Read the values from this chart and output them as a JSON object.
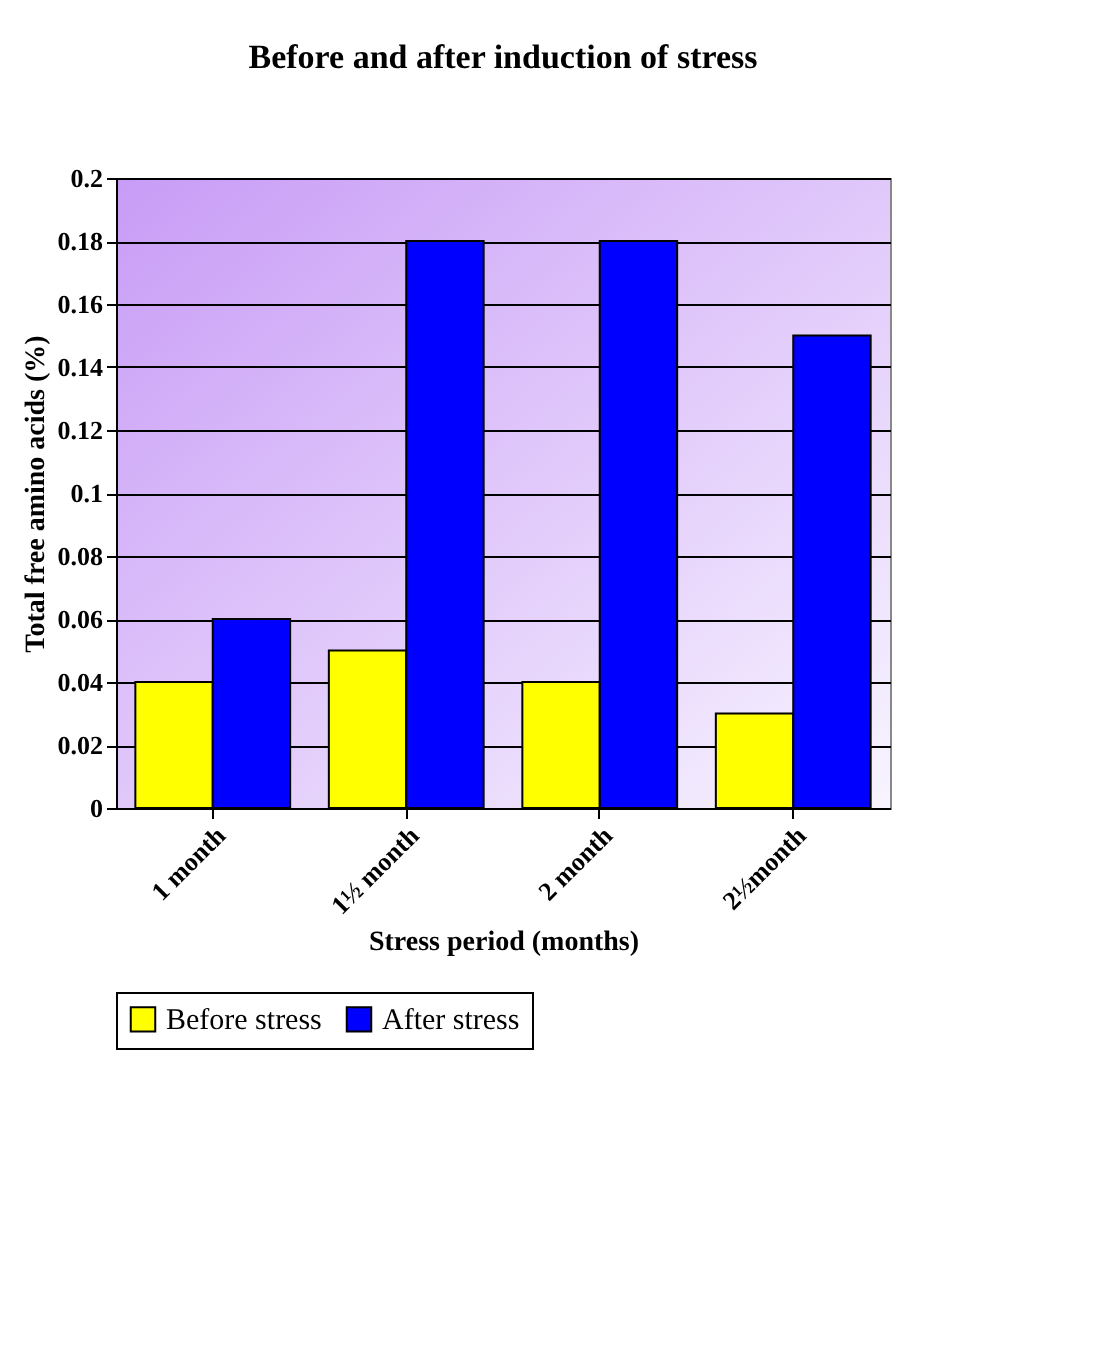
{
  "chart_data": {
    "type": "bar",
    "title": "Before and after induction of stress",
    "xlabel": "Stress period (months)",
    "ylabel": "Total free amino acids (%)",
    "categories": [
      "1 month",
      "1½ month",
      "2 month",
      "2½month"
    ],
    "series": [
      {
        "name": "Before stress",
        "color": "#ffff00",
        "values": [
          0.04,
          0.05,
          0.04,
          0.03
        ]
      },
      {
        "name": "After stress",
        "color": "#0000ff",
        "values": [
          0.06,
          0.18,
          0.18,
          0.15
        ]
      }
    ],
    "ylim": [
      0,
      0.2
    ],
    "yticks": [
      0,
      0.02,
      0.04,
      0.06,
      0.08,
      0.1,
      0.12,
      0.14,
      0.16,
      0.18,
      0.2
    ],
    "grid": "y",
    "legend": "bottom"
  }
}
